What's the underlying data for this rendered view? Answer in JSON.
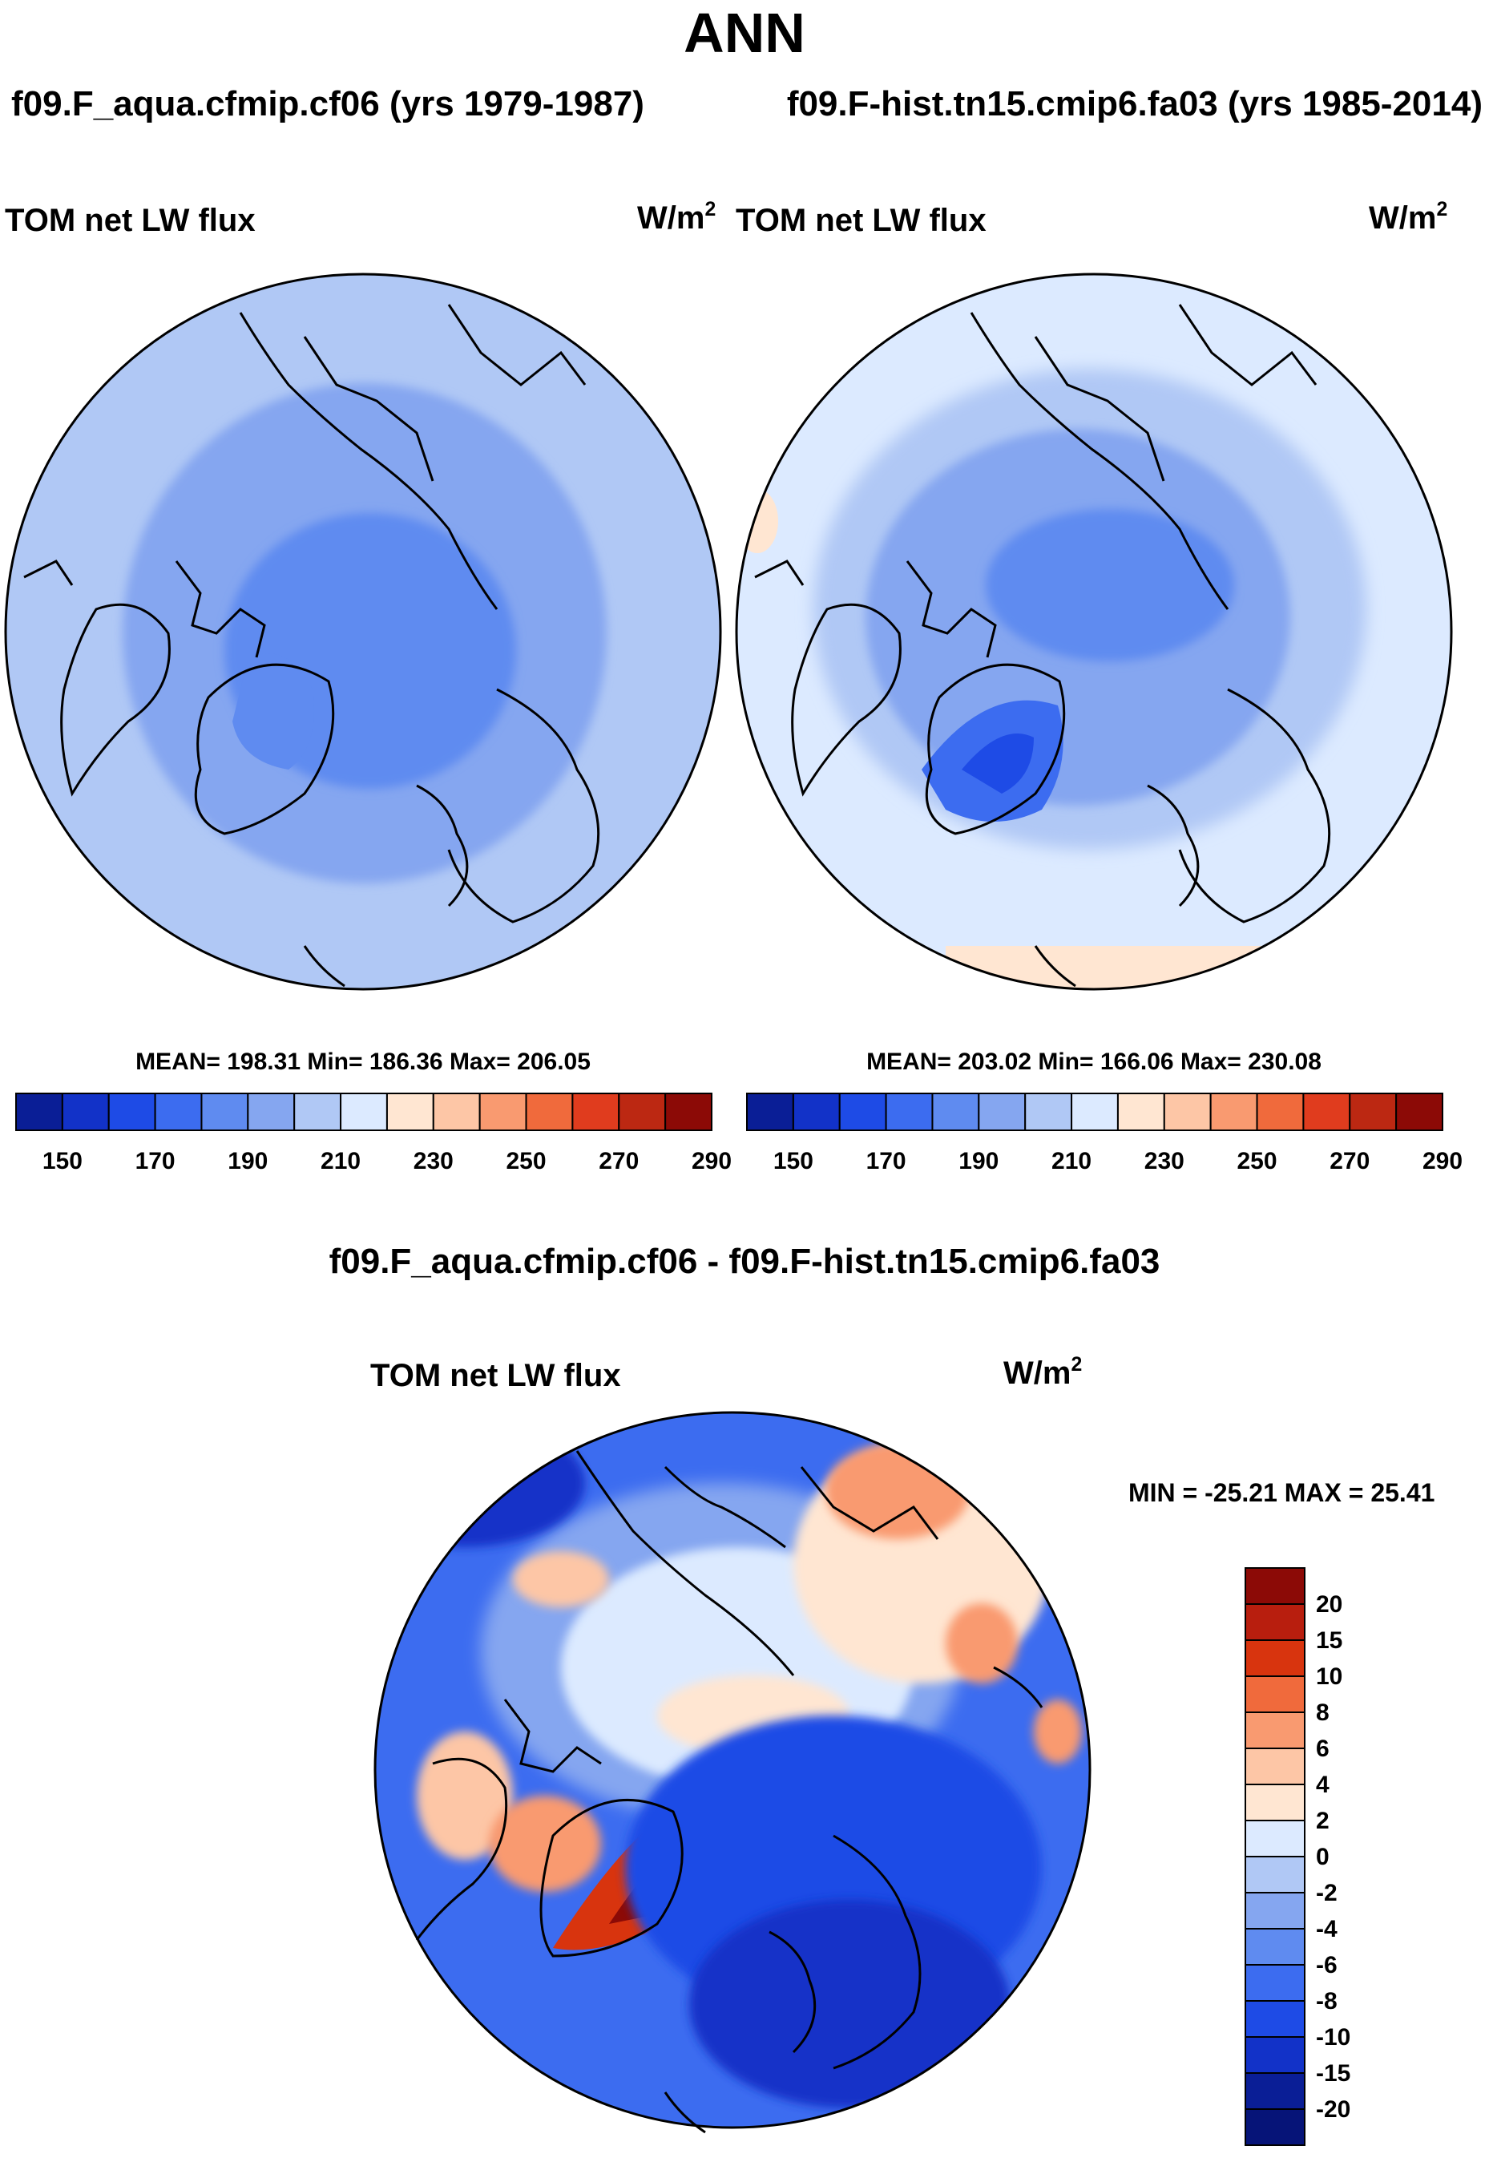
{
  "title": "ANN",
  "panels": [
    {
      "case_title": "f09.F_aqua.cfmip.cf06 (yrs 1979-1987)",
      "variable": "TOM net LW flux",
      "units_base": "W/m",
      "units_exp": "2",
      "stats": "MEAN= 198.31  Min= 186.36  Max= 206.05"
    },
    {
      "case_title": "f09.F-hist.tn15.cmip6.fa03 (yrs 1985-2014)",
      "variable": "TOM net LW flux",
      "units_base": "W/m",
      "units_exp": "2",
      "stats": "MEAN= 203.02  Min= 166.06  Max= 230.08"
    }
  ],
  "diff_panel": {
    "case_title": "f09.F_aqua.cfmip.cf06 - f09.F-hist.tn15.cmip6.fa03",
    "variable": "TOM net LW flux",
    "units_base": "W/m",
    "units_exp": "2",
    "stats": "MIN = -25.21 MAX =  25.41"
  },
  "chart_data": [
    {
      "type": "heatmap",
      "projection": "north polar stereographic",
      "title": "f09.F_aqua.cfmip.cf06 (yrs 1979-1987)",
      "variable": "TOM net LW flux",
      "units": "W/m^2",
      "mean": 198.31,
      "min": 186.36,
      "max": 206.05,
      "colorbar_ticks": [
        150,
        170,
        190,
        210,
        230,
        250,
        270,
        290
      ],
      "colorbar_colors": [
        "#0a1e96",
        "#1232c8",
        "#1e4be6",
        "#3c6cf0",
        "#5f8bf0",
        "#85a6f0",
        "#b0c8f5",
        "#dceaff",
        "#ffe6d2",
        "#fdc6a6",
        "#f99a70",
        "#f06a3c",
        "#e03c1e",
        "#bc2812",
        "#8c0a06"
      ]
    },
    {
      "type": "heatmap",
      "projection": "north polar stereographic",
      "title": "f09.F-hist.tn15.cmip6.fa03 (yrs 1985-2014)",
      "variable": "TOM net LW flux",
      "units": "W/m^2",
      "mean": 203.02,
      "min": 166.06,
      "max": 230.08,
      "colorbar_ticks": [
        150,
        170,
        190,
        210,
        230,
        250,
        270,
        290
      ],
      "colorbar_colors": [
        "#0a1e96",
        "#1232c8",
        "#1e4be6",
        "#3c6cf0",
        "#5f8bf0",
        "#85a6f0",
        "#b0c8f5",
        "#dceaff",
        "#ffe6d2",
        "#fdc6a6",
        "#f99a70",
        "#f06a3c",
        "#e03c1e",
        "#bc2812",
        "#8c0a06"
      ]
    },
    {
      "type": "heatmap",
      "projection": "north polar stereographic",
      "title": "f09.F_aqua.cfmip.cf06 - f09.F-hist.tn15.cmip6.fa03",
      "variable": "TOM net LW flux",
      "units": "W/m^2",
      "min": -25.21,
      "max": 25.41,
      "colorbar_ticks": [
        20,
        15,
        10,
        8,
        6,
        4,
        2,
        0,
        -2,
        -4,
        -6,
        -8,
        -10,
        -15,
        -20
      ],
      "colorbar_colors": [
        "#8c0a06",
        "#b81e0e",
        "#d8340e",
        "#f06a3c",
        "#f99a70",
        "#fdc6a6",
        "#ffe6d2",
        "#dceaff",
        "#b0c8f5",
        "#85a6f0",
        "#5f8bf0",
        "#3c6cf0",
        "#1e4be6",
        "#1232c8",
        "#0a1e96",
        "#061478"
      ]
    }
  ]
}
